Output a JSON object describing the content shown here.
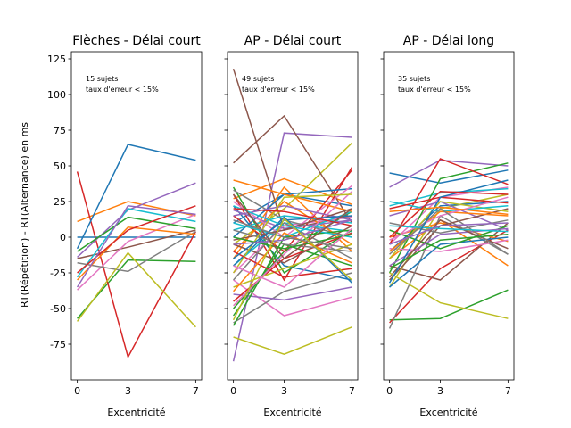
{
  "figure": {
    "ylabel": "RT(Répétition) - RT(Alternance) en ms",
    "yticks": [
      -75,
      -50,
      -25,
      0,
      25,
      50,
      75,
      100,
      125
    ],
    "ylim": [
      -100,
      130
    ],
    "colors": [
      "#1f77b4",
      "#ff7f0e",
      "#2ca02c",
      "#d62728",
      "#9467bd",
      "#8c564b",
      "#e377c2",
      "#7f7f7f",
      "#bcbd22",
      "#17becf"
    ]
  },
  "chart_data": [
    {
      "type": "line",
      "title": "Flèches - Délai court",
      "xlabel": "Excentricité",
      "ylabel": "RT(Répétition) - RT(Alternance) en ms",
      "xticks": [
        0,
        3,
        7
      ],
      "xlim": [
        -0.35,
        7.35
      ],
      "ylim": [
        -100,
        130
      ],
      "annotation": [
        "15 sujets",
        "taux d'erreur < 15%"
      ],
      "x": [
        0,
        3,
        7
      ],
      "series": [
        {
          "values": [
            0,
            0,
            0
          ]
        },
        {
          "values": [
            11,
            25,
            15
          ]
        },
        {
          "values": [
            -57,
            -16,
            -17
          ]
        },
        {
          "values": [
            46,
            -84,
            4
          ]
        },
        {
          "values": [
            -14,
            19,
            38
          ]
        },
        {
          "values": [
            -15,
            -7,
            5
          ]
        },
        {
          "values": [
            -37,
            -3,
            16
          ]
        },
        {
          "values": [
            -18,
            -24,
            4
          ]
        },
        {
          "values": [
            -59,
            -11,
            -63
          ]
        },
        {
          "values": [
            -28,
            20,
            11
          ]
        },
        {
          "values": [
            -8,
            65,
            54
          ]
        },
        {
          "values": [
            -30,
            7,
            2
          ]
        },
        {
          "values": [
            -10,
            14,
            6
          ]
        },
        {
          "values": [
            -25,
            5,
            22
          ]
        },
        {
          "values": [
            -35,
            22,
            16
          ]
        }
      ]
    },
    {
      "type": "line",
      "title": "AP - Délai court",
      "xlabel": "Excentricité",
      "xticks": [
        0,
        3,
        7
      ],
      "xlim": [
        -0.35,
        7.35
      ],
      "ylim": [
        -100,
        130
      ],
      "annotation": [
        "49 sujets",
        "taux d'erreur < 15%"
      ],
      "x": [
        0,
        3,
        7
      ],
      "series": [
        {
          "values": [
            10,
            30,
            22
          ]
        },
        {
          "values": [
            27,
            41,
            23
          ]
        },
        {
          "values": [
            -50,
            -10,
            18
          ]
        },
        {
          "values": [
            30,
            -30,
            49
          ]
        },
        {
          "values": [
            -87,
            73,
            70
          ]
        },
        {
          "values": [
            118,
            5,
            15
          ]
        },
        {
          "values": [
            -30,
            -55,
            -42
          ]
        },
        {
          "values": [
            -60,
            -38,
            -25
          ]
        },
        {
          "values": [
            -5,
            20,
            66
          ]
        },
        {
          "values": [
            -20,
            10,
            4
          ]
        },
        {
          "values": [
            22,
            -20,
            -30
          ]
        },
        {
          "values": [
            -15,
            35,
            -10
          ]
        },
        {
          "values": [
            35,
            -25,
            5
          ]
        },
        {
          "values": [
            15,
            -10,
            47
          ]
        },
        {
          "values": [
            -40,
            -44,
            -35
          ]
        },
        {
          "values": [
            52,
            85,
            10
          ]
        },
        {
          "values": [
            -25,
            8,
            14
          ]
        },
        {
          "values": [
            33,
            12,
            0
          ]
        },
        {
          "values": [
            -70,
            -82,
            -63
          ]
        },
        {
          "values": [
            5,
            15,
            10
          ]
        },
        {
          "values": [
            0,
            30,
            34
          ]
        },
        {
          "values": [
            -10,
            25,
            -5
          ]
        },
        {
          "values": [
            -55,
            -5,
            -20
          ]
        },
        {
          "values": [
            -45,
            -15,
            3
          ]
        },
        {
          "values": [
            19,
            6,
            12
          ]
        },
        {
          "values": [
            -5,
            -18,
            8
          ]
        },
        {
          "values": [
            25,
            0,
            36
          ]
        },
        {
          "values": [
            -30,
            10,
            -15
          ]
        },
        {
          "values": [
            -35,
            -22,
            -5
          ]
        },
        {
          "values": [
            10,
            0,
            18
          ]
        },
        {
          "values": [
            -20,
            14,
            -32
          ]
        },
        {
          "values": [
            40,
            30,
            18
          ]
        },
        {
          "values": [
            -62,
            0,
            5
          ]
        },
        {
          "values": [
            -10,
            -28,
            -22
          ]
        },
        {
          "values": [
            15,
            22,
            12
          ]
        },
        {
          "values": [
            -2,
            5,
            20
          ]
        },
        {
          "values": [
            -48,
            -12,
            32
          ]
        },
        {
          "values": [
            5,
            -5,
            -10
          ]
        },
        {
          "values": [
            -25,
            28,
            30
          ]
        },
        {
          "values": [
            22,
            8,
            0
          ]
        },
        {
          "values": [
            -15,
            12,
            15
          ]
        },
        {
          "values": [
            -38,
            3,
            -18
          ]
        },
        {
          "values": [
            0,
            -8,
            2
          ]
        },
        {
          "values": [
            20,
            18,
            8
          ]
        },
        {
          "values": [
            -5,
            -2,
            12
          ]
        },
        {
          "values": [
            30,
            -15,
            20
          ]
        },
        {
          "values": [
            -20,
            -35,
            6
          ]
        },
        {
          "values": [
            12,
            0,
            -8
          ]
        },
        {
          "values": [
            -58,
            13,
            -30
          ]
        }
      ]
    },
    {
      "type": "line",
      "title": "AP - Délai long",
      "xlabel": "Excentricité",
      "xticks": [
        0,
        3,
        7
      ],
      "xlim": [
        -0.35,
        7.35
      ],
      "ylim": [
        -100,
        130
      ],
      "annotation": [
        "35 sujets",
        "taux d'erreur < 15%"
      ],
      "x": [
        0,
        3,
        7
      ],
      "series": [
        {
          "values": [
            45,
            38,
            47
          ]
        },
        {
          "values": [
            -15,
            12,
            -20
          ]
        },
        {
          "values": [
            -58,
            -57,
            -37
          ]
        },
        {
          "values": [
            -60,
            -22,
            5
          ]
        },
        {
          "values": [
            35,
            54,
            50
          ]
        },
        {
          "values": [
            -20,
            -30,
            10
          ]
        },
        {
          "values": [
            -5,
            28,
            35
          ]
        },
        {
          "values": [
            -64,
            15,
            -12
          ]
        },
        {
          "values": [
            -35,
            20,
            30
          ]
        },
        {
          "values": [
            22,
            31,
            34
          ]
        },
        {
          "values": [
            -10,
            22,
            25
          ]
        },
        {
          "values": [
            0,
            10,
            -3
          ]
        },
        {
          "values": [
            -25,
            41,
            52
          ]
        },
        {
          "values": [
            -5,
            55,
            37
          ]
        },
        {
          "values": [
            15,
            25,
            5
          ]
        },
        {
          "values": [
            -30,
            8,
            20
          ]
        },
        {
          "values": [
            -8,
            -10,
            -2
          ]
        },
        {
          "values": [
            10,
            3,
            12
          ]
        },
        {
          "values": [
            -15,
            25,
            18
          ]
        },
        {
          "values": [
            25,
            18,
            22
          ]
        },
        {
          "values": [
            -35,
            -5,
            0
          ]
        },
        {
          "values": [
            -10,
            18,
            15
          ]
        },
        {
          "values": [
            5,
            -8,
            8
          ]
        },
        {
          "values": [
            20,
            28,
            24
          ]
        },
        {
          "values": [
            -20,
            2,
            6
          ]
        },
        {
          "values": [
            -28,
            12,
            -8
          ]
        },
        {
          "values": [
            -2,
            15,
            28
          ]
        },
        {
          "values": [
            -12,
            20,
            -12
          ]
        },
        {
          "values": [
            -25,
            -46,
            -57
          ]
        },
        {
          "values": [
            8,
            6,
            4
          ]
        },
        {
          "values": [
            -32,
            28,
            40
          ]
        },
        {
          "values": [
            18,
            21,
            16
          ]
        },
        {
          "values": [
            -22,
            -2,
            2
          ]
        },
        {
          "values": [
            0,
            32,
            30
          ]
        },
        {
          "values": [
            -5,
            8,
            10
          ]
        }
      ]
    }
  ]
}
